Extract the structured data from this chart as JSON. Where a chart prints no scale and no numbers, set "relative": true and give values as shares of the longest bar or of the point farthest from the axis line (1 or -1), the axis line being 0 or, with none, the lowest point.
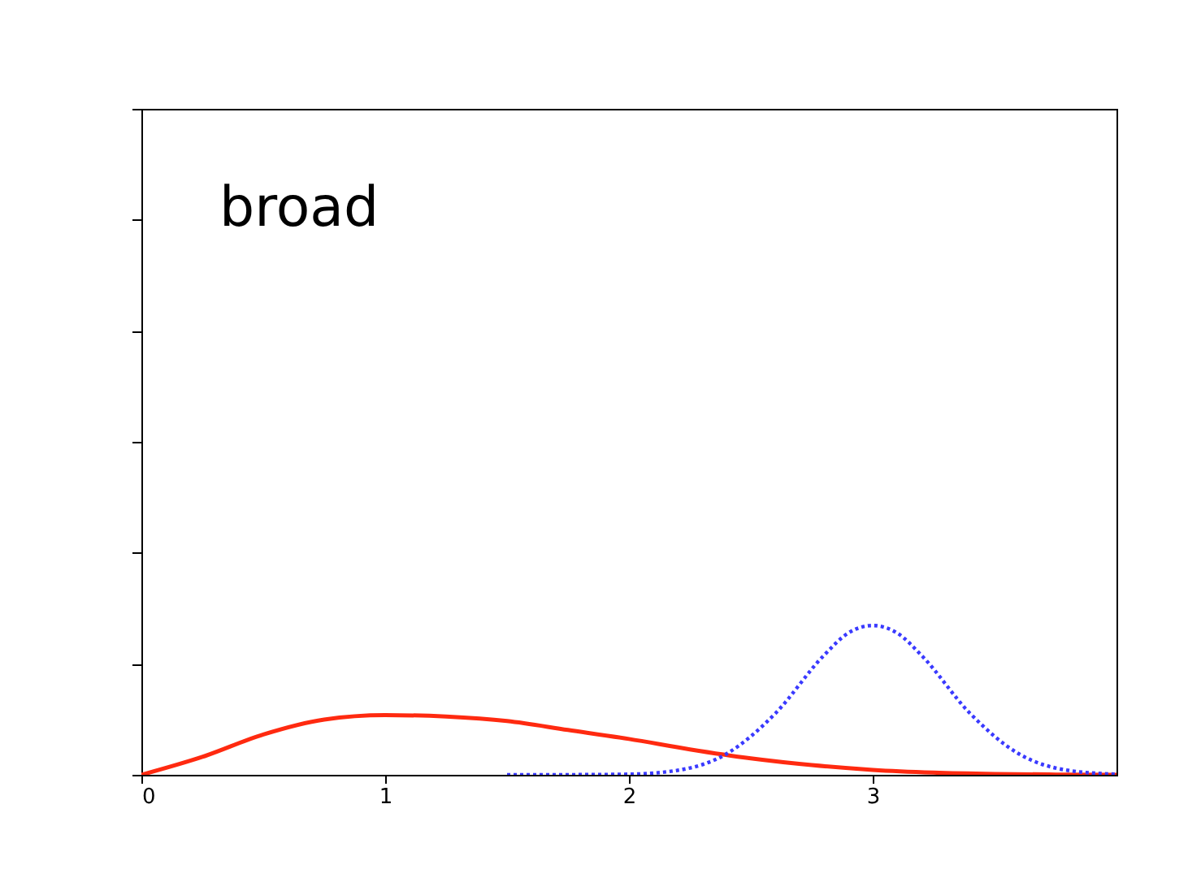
{
  "chart_data": {
    "type": "line",
    "relative": true,
    "xlim": [
      0,
      4
    ],
    "xticks": [
      0,
      1,
      2,
      3
    ],
    "annotations": [
      "broad"
    ],
    "grid": false,
    "series": [
      {
        "color": "#ff2a10",
        "line_style": "solid",
        "x": [
          0,
          0.25,
          0.5,
          0.75,
          1,
          1.25,
          1.5,
          1.75,
          2,
          2.25,
          2.5,
          2.75,
          3,
          3.25,
          3.5,
          3.75,
          4
        ],
        "values": [
          0,
          0.12,
          0.27,
          0.37,
          0.4,
          0.39,
          0.36,
          0.3,
          0.24,
          0.17,
          0.11,
          0.065,
          0.033,
          0.015,
          0.006,
          0.002,
          0
        ]
      },
      {
        "color": "#3a3aff",
        "line_style": "dotted",
        "x": [
          1.5,
          1.8,
          2,
          2.2,
          2.4,
          2.6,
          2.8,
          2.9,
          3,
          3.1,
          3.2,
          3.4,
          3.6,
          3.8,
          4
        ],
        "values": [
          0,
          0.001,
          0.004,
          0.03,
          0.14,
          0.41,
          0.8,
          0.95,
          1,
          0.95,
          0.8,
          0.41,
          0.14,
          0.03,
          0.004
        ]
      }
    ]
  }
}
